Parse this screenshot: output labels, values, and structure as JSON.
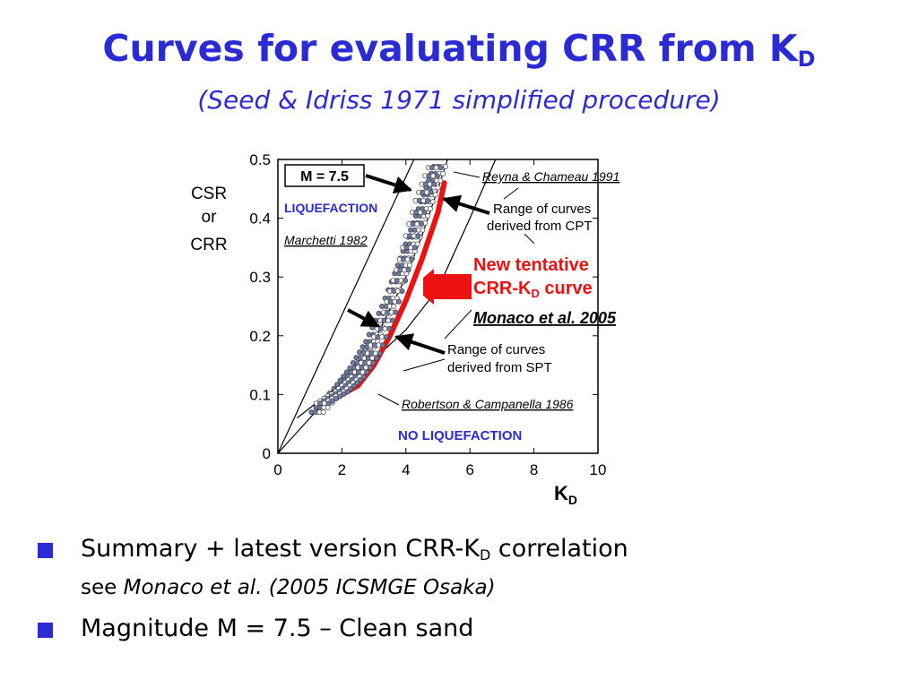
{
  "title": {
    "main": "Curves for evaluating CRR from K",
    "sub": "D"
  },
  "subtitle": "(Seed & Idriss 1971 simplified procedure)",
  "chart_data": {
    "type": "line",
    "title": "",
    "xlabel": "K",
    "xlabel_sub": "D",
    "ylabel_lines": [
      "CSR",
      "or",
      "CRR"
    ],
    "xlim": [
      0,
      10
    ],
    "ylim": [
      0,
      0.5
    ],
    "x_ticks": [
      0,
      2,
      4,
      6,
      8,
      10
    ],
    "y_ticks": [
      0,
      0.1,
      0.2,
      0.3,
      0.4,
      0.5
    ],
    "x_tick_labels": [
      "0",
      "2",
      "4",
      "6",
      "8",
      "10"
    ],
    "y_tick_labels": [
      "0",
      "0.1",
      "0.2",
      "0.3",
      "0.4",
      "0.5"
    ],
    "grid": false,
    "colors": {
      "accent": "#2b2bd6",
      "new_curve": "#ee1111",
      "dots": "#707c98"
    },
    "series": [
      {
        "name": "Marchetti 1982",
        "x": [
          0,
          4.25
        ],
        "y": [
          0,
          0.5
        ]
      },
      {
        "name": "Reyna & Chameau 1991",
        "x": [
          0,
          1,
          2,
          3,
          4,
          4.5,
          5,
          5.3
        ],
        "y": [
          0,
          0.06,
          0.12,
          0.19,
          0.3,
          0.37,
          0.45,
          0.5
        ]
      },
      {
        "name": "Robertson & Campanella 1986",
        "x": [
          0.6,
          2,
          3,
          4,
          5,
          6,
          6.8
        ],
        "y": [
          0.06,
          0.12,
          0.16,
          0.21,
          0.28,
          0.4,
          0.5
        ]
      },
      {
        "name": "Range of curves derived from CPT",
        "x": [
          1.3,
          2,
          2.5,
          3,
          3.5,
          4,
          4.4,
          4.8,
          5.2
        ],
        "y": [
          0.07,
          0.11,
          0.145,
          0.19,
          0.25,
          0.32,
          0.38,
          0.44,
          0.5
        ]
      },
      {
        "name": "Range of curves derived from SPT",
        "x": [
          1.4,
          2,
          2.5,
          3,
          3.5,
          4,
          4.5,
          5
        ],
        "y": [
          0.085,
          0.105,
          0.13,
          0.17,
          0.24,
          0.33,
          0.43,
          0.5
        ]
      },
      {
        "name": "New tentative CRR-KD curve",
        "x": [
          2,
          2.5,
          3,
          3.5,
          4,
          4.5,
          5,
          5.2
        ],
        "y": [
          0.1,
          0.115,
          0.15,
          0.2,
          0.26,
          0.33,
          0.41,
          0.46
        ]
      }
    ],
    "annotations": {
      "magnitude_box": "M = 7.5",
      "liquefaction": "LIQUEFACTION",
      "no_liquefaction": "NO LIQUEFACTION",
      "marchetti": "Marchetti 1982",
      "reyna": "Reyna & Chameau 1991",
      "cpt_line1": "Range of curves",
      "cpt_line2": "derived from CPT",
      "new_line1": "New tentative",
      "new_line2": "CRR-K",
      "new_sub": "D",
      "new_line2_end": " curve",
      "monaco": "Monaco et al. 2005",
      "spt_line1": "Range of curves",
      "spt_line2": "derived from SPT",
      "robertson": "Robertson & Campanella 1986"
    }
  },
  "bullets": {
    "b1_pre": "Summary + latest version CRR-K",
    "b1_sub": "D",
    "b1_post": " correlation",
    "b1_line2_pre": "see ",
    "b1_line2_italic": "Monaco et al. (2005 ICSMGE Osaka)",
    "b2": "Magnitude M = 7.5  –  Clean sand"
  }
}
